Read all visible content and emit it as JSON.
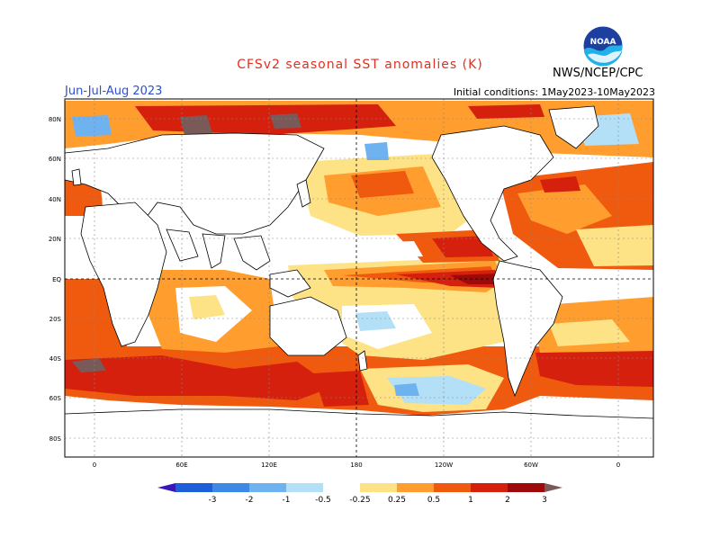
{
  "title": "CFSv2 seasonal SST anomalies (K)",
  "season": "Jun-Jul-Aug 2023",
  "initial_conditions": "Initial conditions: 1May2023-10May2023",
  "agency": "NWS/NCEP/CPC",
  "logo_text": "NOAA",
  "lat_labels": [
    "80N",
    "60N",
    "40N",
    "20N",
    "EQ",
    "20S",
    "40S",
    "60S",
    "80S"
  ],
  "lon_labels": [
    "0",
    "60E",
    "120E",
    "180",
    "120W",
    "60W",
    "0"
  ],
  "colorbar": {
    "labels": [
      "-3",
      "-2",
      "-1",
      "-0.5",
      "-0.25",
      "0.25",
      "0.5",
      "1",
      "2",
      "3"
    ],
    "colors": [
      "#3a18b8",
      "#1d5fd8",
      "#3d89e6",
      "#6fb2f0",
      "#b3e0f7",
      "#ffffff",
      "#fde386",
      "#ff9e2e",
      "#f05a0e",
      "#d5200e",
      "#9e0a0a",
      "#7a5a58"
    ]
  },
  "colors": {
    "title": "#e03020",
    "season": "#2a4fd8",
    "land": "#ffffff",
    "neutral_ocean": "#ffffff",
    "warm_light": "#fde386",
    "warm_orange": "#ff9e2e",
    "warm_red_orange": "#f05a0e",
    "warm_red": "#d5200e",
    "warm_dark_red": "#9e0a0a",
    "warm_extreme": "#7a5a58",
    "cool_light": "#b3e0f7",
    "cool_medium": "#6fb2f0",
    "cool_strong": "#3d89e6"
  }
}
